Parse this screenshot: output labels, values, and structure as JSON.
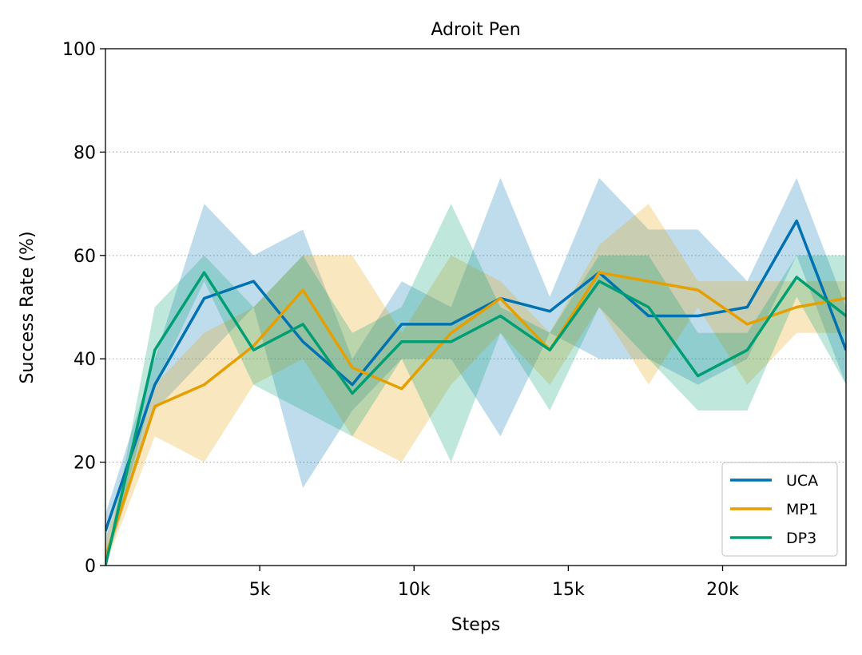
{
  "chart_data": {
    "type": "line",
    "title": "Adroit Pen",
    "xlabel": "Steps",
    "ylabel": "Success Rate (%)",
    "xlim": [
      0,
      24000
    ],
    "ylim": [
      0,
      100
    ],
    "x_ticks": [
      5000,
      10000,
      15000,
      20000
    ],
    "x_tick_labels": [
      "5k",
      "10k",
      "15k",
      "20k"
    ],
    "y_ticks": [
      0,
      20,
      40,
      60,
      80,
      100
    ],
    "y_tick_labels": [
      "0",
      "20",
      "40",
      "60",
      "80",
      "100"
    ],
    "grid": "horizontal dotted",
    "legend_position": "lower right",
    "x": [
      0,
      1600,
      3200,
      4800,
      6400,
      8000,
      9600,
      11200,
      12800,
      14400,
      16000,
      17600,
      19200,
      20800,
      22400,
      24000
    ],
    "series": [
      {
        "name": "UCA",
        "color": "#0072b2",
        "values": [
          6.7,
          35.0,
          51.7,
          55.0,
          43.3,
          35.0,
          46.7,
          46.7,
          51.7,
          49.2,
          56.7,
          48.3,
          48.3,
          50.0,
          66.7,
          41.7
        ],
        "lower": [
          0.0,
          30.0,
          40.0,
          50.0,
          15.0,
          30.0,
          40.0,
          40.0,
          25.0,
          45.0,
          40.0,
          40.0,
          35.0,
          40.0,
          60.0,
          35.0
        ],
        "upper": [
          10.0,
          40.0,
          70.0,
          60.0,
          65.0,
          40.0,
          55.0,
          50.0,
          75.0,
          52.0,
          75.0,
          65.0,
          65.0,
          55.0,
          75.0,
          50.0
        ]
      },
      {
        "name": "MP1",
        "color": "#e69f00",
        "values": [
          1.7,
          30.8,
          35.0,
          42.5,
          53.3,
          38.3,
          34.2,
          45.0,
          51.7,
          41.7,
          56.7,
          55.0,
          53.3,
          46.7,
          50.0,
          51.7
        ],
        "lower": [
          0.0,
          25.0,
          20.0,
          35.0,
          40.0,
          25.0,
          20.0,
          35.0,
          45.0,
          35.0,
          50.0,
          35.0,
          50.0,
          35.0,
          45.0,
          45.0
        ],
        "upper": [
          5.0,
          35.0,
          45.0,
          50.0,
          60.0,
          60.0,
          45.0,
          60.0,
          55.0,
          45.0,
          62.0,
          70.0,
          55.0,
          55.0,
          55.0,
          55.0
        ]
      },
      {
        "name": "DP3",
        "color": "#009e73",
        "values": [
          0.0,
          41.7,
          56.7,
          41.7,
          46.7,
          33.3,
          43.3,
          43.3,
          48.3,
          41.7,
          55.0,
          50.0,
          36.7,
          41.7,
          55.8,
          48.3
        ],
        "lower": [
          0.0,
          35.0,
          55.0,
          35.0,
          30.0,
          25.0,
          40.0,
          20.0,
          45.0,
          30.0,
          50.0,
          40.0,
          30.0,
          30.0,
          52.0,
          35.0
        ],
        "upper": [
          0.0,
          50.0,
          60.0,
          50.0,
          60.0,
          45.0,
          50.0,
          70.0,
          50.0,
          45.0,
          60.0,
          60.0,
          45.0,
          45.0,
          60.0,
          60.0
        ]
      }
    ]
  }
}
